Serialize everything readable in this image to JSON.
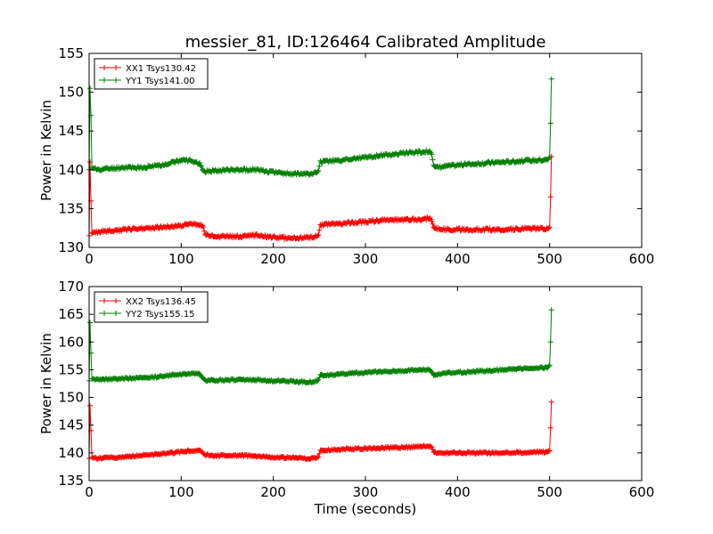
{
  "figure": {
    "title": "messier_81, ID:126464 Calibrated Amplitude"
  },
  "chart_data": [
    {
      "type": "line",
      "title": "messier_81, ID:126464 Calibrated Amplitude",
      "xlabel": "",
      "ylabel": "Power in Kelvin",
      "xlim": [
        0,
        600
      ],
      "ylim": [
        130,
        155
      ],
      "xticks": [
        0,
        100,
        200,
        300,
        400,
        500,
        600
      ],
      "yticks": [
        130,
        135,
        140,
        145,
        150,
        155
      ],
      "grid": false,
      "legend_position": "top-left",
      "series": [
        {
          "name": "XX1 Tsys130.42",
          "color": "#ff0000",
          "x": [
            0,
            1,
            2,
            3,
            5,
            10,
            20,
            40,
            60,
            80,
            100,
            110,
            120,
            124,
            126,
            140,
            160,
            180,
            200,
            220,
            240,
            247,
            249,
            251,
            260,
            280,
            300,
            320,
            340,
            360,
            370,
            372,
            374,
            376,
            390,
            420,
            450,
            480,
            498,
            500,
            501,
            502
          ],
          "y": [
            131.5,
            141.0,
            136.0,
            131.8,
            132.0,
            132.0,
            132.1,
            132.3,
            132.5,
            132.6,
            132.8,
            133.0,
            133.0,
            132.6,
            131.6,
            131.4,
            131.4,
            131.6,
            131.3,
            131.2,
            131.3,
            131.4,
            131.6,
            132.8,
            133.0,
            133.1,
            133.3,
            133.5,
            133.6,
            133.6,
            133.8,
            133.4,
            132.6,
            132.4,
            132.3,
            132.3,
            132.3,
            132.4,
            132.4,
            132.6,
            136.5,
            141.7
          ]
        },
        {
          "name": "YY1 Tsys141.00",
          "color": "#008000",
          "x": [
            0,
            1,
            2,
            3,
            5,
            10,
            20,
            40,
            60,
            80,
            100,
            110,
            120,
            124,
            126,
            140,
            160,
            180,
            200,
            220,
            240,
            247,
            249,
            251,
            260,
            280,
            300,
            320,
            340,
            360,
            370,
            372,
            374,
            376,
            390,
            420,
            450,
            480,
            498,
            500,
            501,
            502
          ],
          "y": [
            140.0,
            150.5,
            147.0,
            140.3,
            140.1,
            140.0,
            140.1,
            140.3,
            140.3,
            140.6,
            141.3,
            141.2,
            140.8,
            139.9,
            139.8,
            139.9,
            140.0,
            140.0,
            139.7,
            139.5,
            139.5,
            139.6,
            139.9,
            141.0,
            141.1,
            141.3,
            141.6,
            141.9,
            142.1,
            142.3,
            142.4,
            142.0,
            140.6,
            140.3,
            140.5,
            140.8,
            141.0,
            141.2,
            141.3,
            141.6,
            146.0,
            151.7
          ]
        }
      ]
    },
    {
      "type": "line",
      "title": "",
      "xlabel": "Time (seconds)",
      "ylabel": "Power in Kelvin",
      "xlim": [
        0,
        600
      ],
      "ylim": [
        135,
        170
      ],
      "xticks": [
        0,
        100,
        200,
        300,
        400,
        500,
        600
      ],
      "yticks": [
        135,
        140,
        145,
        150,
        155,
        160,
        165,
        170
      ],
      "grid": false,
      "legend_position": "top-left",
      "series": [
        {
          "name": "XX2 Tsys136.45",
          "color": "#ff0000",
          "x": [
            0,
            1,
            2,
            3,
            5,
            10,
            20,
            40,
            60,
            80,
            100,
            110,
            120,
            124,
            126,
            140,
            160,
            180,
            200,
            220,
            240,
            247,
            249,
            251,
            260,
            280,
            300,
            320,
            340,
            360,
            370,
            372,
            374,
            376,
            390,
            420,
            450,
            480,
            498,
            500,
            501,
            502
          ],
          "y": [
            139.0,
            148.5,
            144.0,
            139.2,
            139.1,
            139.0,
            139.1,
            139.3,
            139.6,
            139.8,
            140.2,
            140.4,
            140.4,
            139.9,
            139.6,
            139.5,
            139.5,
            139.5,
            139.2,
            139.1,
            139.0,
            139.1,
            139.3,
            140.4,
            140.5,
            140.7,
            140.8,
            140.9,
            141.0,
            141.1,
            141.3,
            141.0,
            140.2,
            140.0,
            140.0,
            140.0,
            140.0,
            140.1,
            140.2,
            140.4,
            144.5,
            149.2
          ]
        },
        {
          "name": "YY2 Tsys155.15",
          "color": "#008000",
          "x": [
            0,
            1,
            2,
            3,
            5,
            10,
            20,
            40,
            60,
            80,
            100,
            110,
            120,
            124,
            126,
            140,
            160,
            180,
            200,
            220,
            240,
            247,
            249,
            251,
            260,
            280,
            300,
            320,
            340,
            360,
            370,
            372,
            374,
            376,
            390,
            420,
            450,
            480,
            498,
            500,
            501,
            502
          ],
          "y": [
            153.0,
            163.5,
            158.0,
            153.4,
            153.3,
            153.2,
            153.3,
            153.4,
            153.5,
            153.8,
            154.2,
            154.3,
            154.2,
            153.5,
            153.1,
            153.1,
            153.2,
            153.2,
            153.0,
            152.9,
            152.8,
            152.9,
            153.2,
            154.0,
            154.0,
            154.3,
            154.5,
            154.7,
            154.8,
            155.0,
            155.0,
            154.6,
            154.0,
            154.2,
            154.4,
            154.7,
            155.0,
            155.3,
            155.4,
            155.8,
            160.0,
            165.8
          ]
        }
      ]
    }
  ]
}
